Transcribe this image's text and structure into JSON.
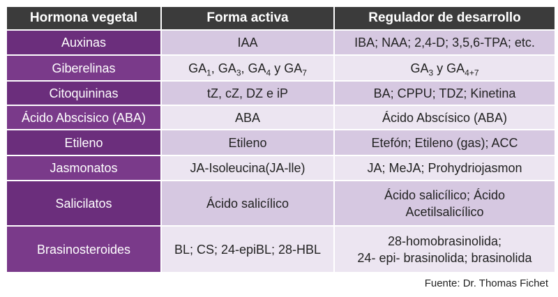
{
  "table": {
    "header": [
      "Hormona vegetal",
      "Forma activa",
      "Regulador de desarrollo"
    ],
    "rows": [
      [
        "Auxinas",
        "IAA",
        "IBA; NAA; 2,4-D; 3,5,6-TPA; etc."
      ],
      [
        "Giberelinas",
        [
          {
            "t": "GA"
          },
          {
            "sub": "1"
          },
          {
            "t": ", GA"
          },
          {
            "sub": "3"
          },
          {
            "t": ", GA"
          },
          {
            "sub": "4"
          },
          {
            "t": " y GA"
          },
          {
            "sub": "7"
          }
        ],
        [
          {
            "t": "GA"
          },
          {
            "sub": "3"
          },
          {
            "t": " y GA"
          },
          {
            "sub": "4+7"
          }
        ]
      ],
      [
        "Citoquininas",
        "tZ, cZ, DZ e iP",
        "BA; CPPU; TDZ; Kinetina"
      ],
      [
        "Ácido Abscisico (ABA)",
        "ABA",
        "Ácido Abscísico (ABA)"
      ],
      [
        "Etileno",
        "Etileno",
        "Etefón; Etileno (gas); ACC"
      ],
      [
        "Jasmonatos",
        "JA-Isoleucina(JA-lle)",
        "JA; MeJA; Prohydriojasmon"
      ],
      [
        "Salicilatos",
        "Ácido salicílico",
        {
          "lines": [
            "Ácido salicílico; Ácido",
            "Acetilsalicílico"
          ]
        }
      ],
      [
        "Brasinosteroides",
        "BL; CS; 24-epiBL; 28-HBL",
        {
          "lines": [
            "28-homobrasinolida;",
            "24- epi- brasinolida; brasinolida"
          ]
        }
      ]
    ]
  },
  "source": "Fuente: Dr. Thomas Fichet"
}
